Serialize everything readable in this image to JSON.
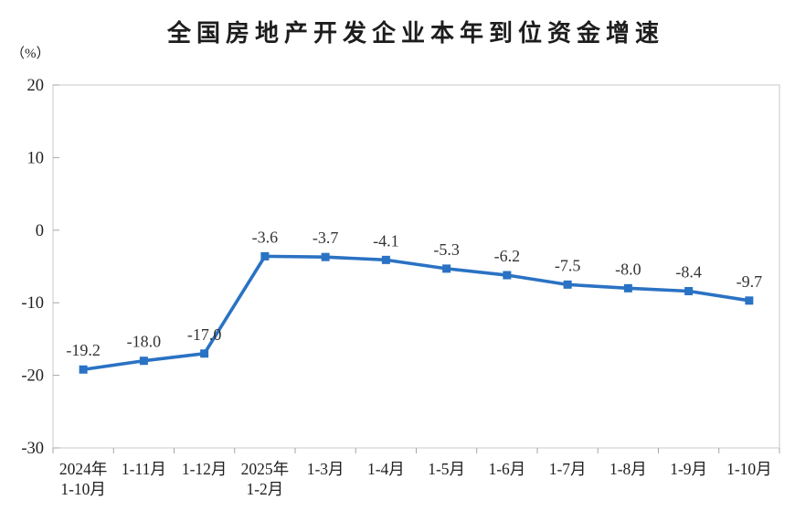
{
  "title": "全国房地产开发企业本年到位资金增速",
  "colors": {
    "line": "#2A72C3",
    "border": "#C9C9C9",
    "tick": "#A6A6A6",
    "axis_text": "#1f1f1f",
    "label_text": "#333333",
    "title_text": "#1d1d1d",
    "background": "#ffffff"
  },
  "chart_data": {
    "type": "line",
    "title": "全国房地产开发企业本年到位资金增速",
    "xlabel": "",
    "ylabel": "（%）",
    "categories": [
      "2024年\n1-10月",
      "1-11月",
      "1-12月",
      "2025年\n1-2月",
      "1-3月",
      "1-4月",
      "1-5月",
      "1-6月",
      "1-7月",
      "1-8月",
      "1-9月",
      "1-10月"
    ],
    "values": [
      -19.2,
      -18.0,
      -17.0,
      -3.6,
      -3.7,
      -4.1,
      -5.3,
      -6.2,
      -7.5,
      -8.0,
      -8.4,
      -9.7
    ],
    "data_labels": [
      "-19.2",
      "-18.0",
      "-17.0",
      "-3.6",
      "-3.7",
      "-4.1",
      "-5.3",
      "-6.2",
      "-7.5",
      "-8.0",
      "-8.4",
      "-9.7"
    ],
    "ylim": [
      -30,
      20
    ],
    "y_ticks": [
      20,
      10,
      0,
      -10,
      -20,
      -30
    ],
    "grid": false,
    "legend": "none",
    "marker": "square",
    "line_width": 3.6
  }
}
